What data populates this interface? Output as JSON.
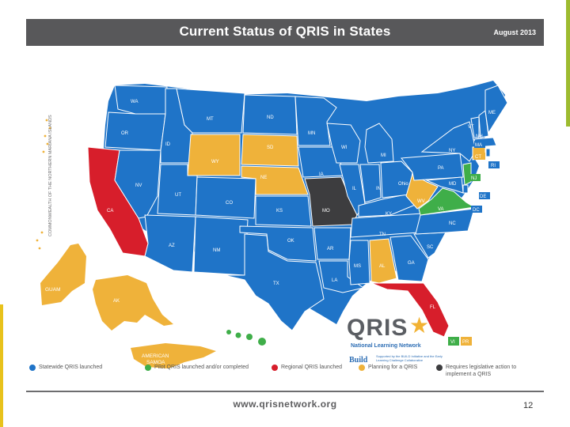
{
  "header": {
    "title": "Current Status of QRIS in States",
    "date": "August 2013"
  },
  "colors": {
    "statewide": "#1f74c8",
    "pilot": "#3fae49",
    "regional": "#d71e2b",
    "planning": "#efb23a",
    "legislative": "#3d3d3f",
    "title_bar": "#58585a"
  },
  "side_label": "COMMONWEALTH OF THE NORTHERN MARIANA ISLANDS",
  "map": {
    "states": [
      {
        "id": "WA",
        "status": "statewide"
      },
      {
        "id": "OR",
        "status": "statewide"
      },
      {
        "id": "CA",
        "status": "regional"
      },
      {
        "id": "NV",
        "status": "statewide"
      },
      {
        "id": "ID",
        "status": "statewide"
      },
      {
        "id": "MT",
        "status": "statewide"
      },
      {
        "id": "WY",
        "status": "planning"
      },
      {
        "id": "UT",
        "status": "statewide"
      },
      {
        "id": "AZ",
        "status": "statewide"
      },
      {
        "id": "CO",
        "status": "statewide"
      },
      {
        "id": "NM",
        "status": "statewide"
      },
      {
        "id": "ND",
        "status": "statewide"
      },
      {
        "id": "SD",
        "status": "planning"
      },
      {
        "id": "NE",
        "status": "planning"
      },
      {
        "id": "KS",
        "status": "statewide"
      },
      {
        "id": "OK",
        "status": "statewide"
      },
      {
        "id": "TX",
        "status": "statewide"
      },
      {
        "id": "MN",
        "status": "statewide"
      },
      {
        "id": "IA",
        "status": "statewide"
      },
      {
        "id": "MO",
        "status": "legislative"
      },
      {
        "id": "AR",
        "status": "statewide"
      },
      {
        "id": "LA",
        "status": "statewide"
      },
      {
        "id": "WI",
        "status": "statewide"
      },
      {
        "id": "IL",
        "status": "statewide"
      },
      {
        "id": "MS",
        "status": "statewide"
      },
      {
        "id": "MI",
        "status": "statewide"
      },
      {
        "id": "IN",
        "status": "statewide"
      },
      {
        "id": "KY",
        "status": "statewide"
      },
      {
        "id": "TN",
        "status": "statewide"
      },
      {
        "id": "AL",
        "status": "planning"
      },
      {
        "id": "GA",
        "status": "statewide"
      },
      {
        "id": "FL",
        "status": "regional"
      },
      {
        "id": "SC",
        "status": "statewide"
      },
      {
        "id": "NC",
        "status": "statewide"
      },
      {
        "id": "Ohio",
        "status": "statewide"
      },
      {
        "id": "WV",
        "status": "planning"
      },
      {
        "id": "VA",
        "status": "pilot"
      },
      {
        "id": "PA",
        "status": "statewide"
      },
      {
        "id": "NY",
        "status": "statewide"
      },
      {
        "id": "VT",
        "status": "statewide"
      },
      {
        "id": "NH",
        "status": "statewide"
      },
      {
        "id": "ME",
        "status": "statewide"
      },
      {
        "id": "MA",
        "status": "statewide"
      },
      {
        "id": "CT",
        "status": "planning"
      },
      {
        "id": "RI",
        "status": "statewide"
      },
      {
        "id": "NJ",
        "status": "pilot"
      },
      {
        "id": "DE",
        "status": "statewide"
      },
      {
        "id": "MD",
        "status": "statewide"
      },
      {
        "id": "DC",
        "status": "statewide"
      },
      {
        "id": "AK",
        "status": "planning"
      },
      {
        "id": "HI",
        "status": "pilot"
      },
      {
        "id": "GUAM",
        "status": "planning"
      },
      {
        "id": "AMERICAN SAMOA",
        "status": "planning"
      },
      {
        "id": "VI",
        "status": "pilot"
      },
      {
        "id": "PR",
        "status": "planning"
      }
    ]
  },
  "logo": {
    "name": "QRIS",
    "subtitle": "National Learning Network",
    "build": "Build",
    "support": "Supported by the BUILD Initiative and the Early Learning Challenge Collaborative"
  },
  "legend": [
    {
      "label": "Statewide QRIS launched",
      "color": "#1f74c8"
    },
    {
      "label": "Pilot QRIS launched and/or completed",
      "color": "#3fae49"
    },
    {
      "label": "Regional QRIS launched",
      "color": "#d71e2b"
    },
    {
      "label": "Planning for a QRIS",
      "color": "#efb23a"
    },
    {
      "label": "Requires legislative action to implement a QRIS",
      "color": "#3d3d3f"
    }
  ],
  "footer": {
    "url": "www.qrisnetwork.org",
    "page_number": "12"
  }
}
